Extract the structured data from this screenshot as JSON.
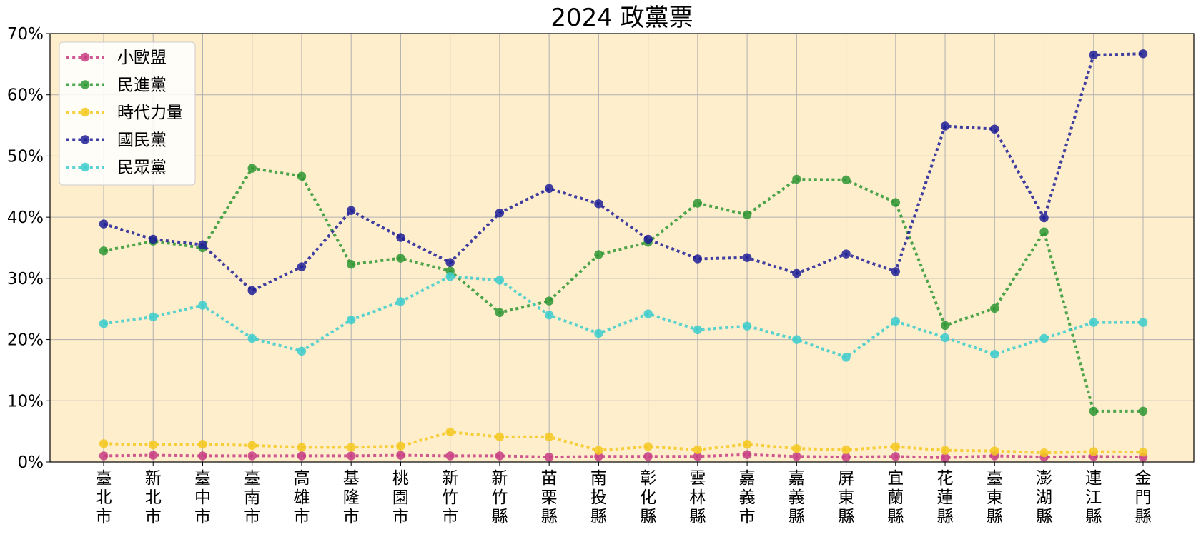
{
  "chart_data": {
    "type": "line",
    "title": "2024 政黨票",
    "xlabel": "",
    "ylabel": "",
    "ylim": [
      0,
      70
    ],
    "yticks": [
      "0%",
      "10%",
      "20%",
      "30%",
      "40%",
      "50%",
      "60%",
      "70%"
    ],
    "grid": true,
    "legend_position": "top-left",
    "plot_background": "#ffeecc",
    "categories": [
      "臺北市",
      "新北市",
      "臺中市",
      "臺南市",
      "高雄市",
      "基隆市",
      "桃園市",
      "新竹市",
      "新竹縣",
      "苗栗縣",
      "南投縣",
      "彰化縣",
      "雲林縣",
      "嘉義市",
      "嘉義縣",
      "屏東縣",
      "宜蘭縣",
      "花蓮縣",
      "臺東縣",
      "澎湖縣",
      "連江縣",
      "金門縣"
    ],
    "series": [
      {
        "name": "小歐盟",
        "color": "#c83c82",
        "values": [
          1.0,
          1.1,
          1.0,
          1.0,
          1.0,
          1.0,
          1.1,
          1.0,
          1.0,
          0.8,
          0.9,
          0.9,
          0.9,
          1.2,
          0.9,
          0.8,
          0.9,
          0.7,
          1.0,
          0.8,
          0.9,
          0.8
        ]
      },
      {
        "name": "民進黨",
        "color": "#2e9632",
        "values": [
          34.5,
          36.1,
          35.0,
          48.0,
          46.7,
          32.3,
          33.3,
          31.2,
          24.4,
          26.3,
          33.9,
          35.9,
          42.3,
          40.4,
          46.2,
          46.1,
          42.4,
          22.3,
          25.1,
          37.6,
          8.3,
          8.3
        ]
      },
      {
        "name": "時代力量",
        "color": "#f5c81e",
        "values": [
          3.0,
          2.8,
          2.9,
          2.7,
          2.4,
          2.4,
          2.6,
          4.9,
          4.1,
          4.1,
          1.9,
          2.5,
          2.0,
          2.9,
          2.2,
          2.0,
          2.5,
          1.9,
          1.8,
          1.5,
          1.7,
          1.6
        ]
      },
      {
        "name": "國民黨",
        "color": "#1e1e96",
        "values": [
          38.9,
          36.4,
          35.5,
          28.0,
          31.9,
          41.1,
          36.7,
          32.6,
          40.7,
          44.7,
          42.2,
          36.4,
          33.2,
          33.4,
          30.8,
          34.0,
          31.1,
          54.9,
          54.4,
          39.9,
          66.5,
          66.7
        ]
      },
      {
        "name": "民眾黨",
        "color": "#3ccdcd",
        "values": [
          22.6,
          23.7,
          25.6,
          20.2,
          18.1,
          23.2,
          26.2,
          30.3,
          29.7,
          24.0,
          21.0,
          24.2,
          21.6,
          22.2,
          20.0,
          17.1,
          23.0,
          20.3,
          17.6,
          20.2,
          22.8,
          22.8
        ]
      }
    ]
  }
}
